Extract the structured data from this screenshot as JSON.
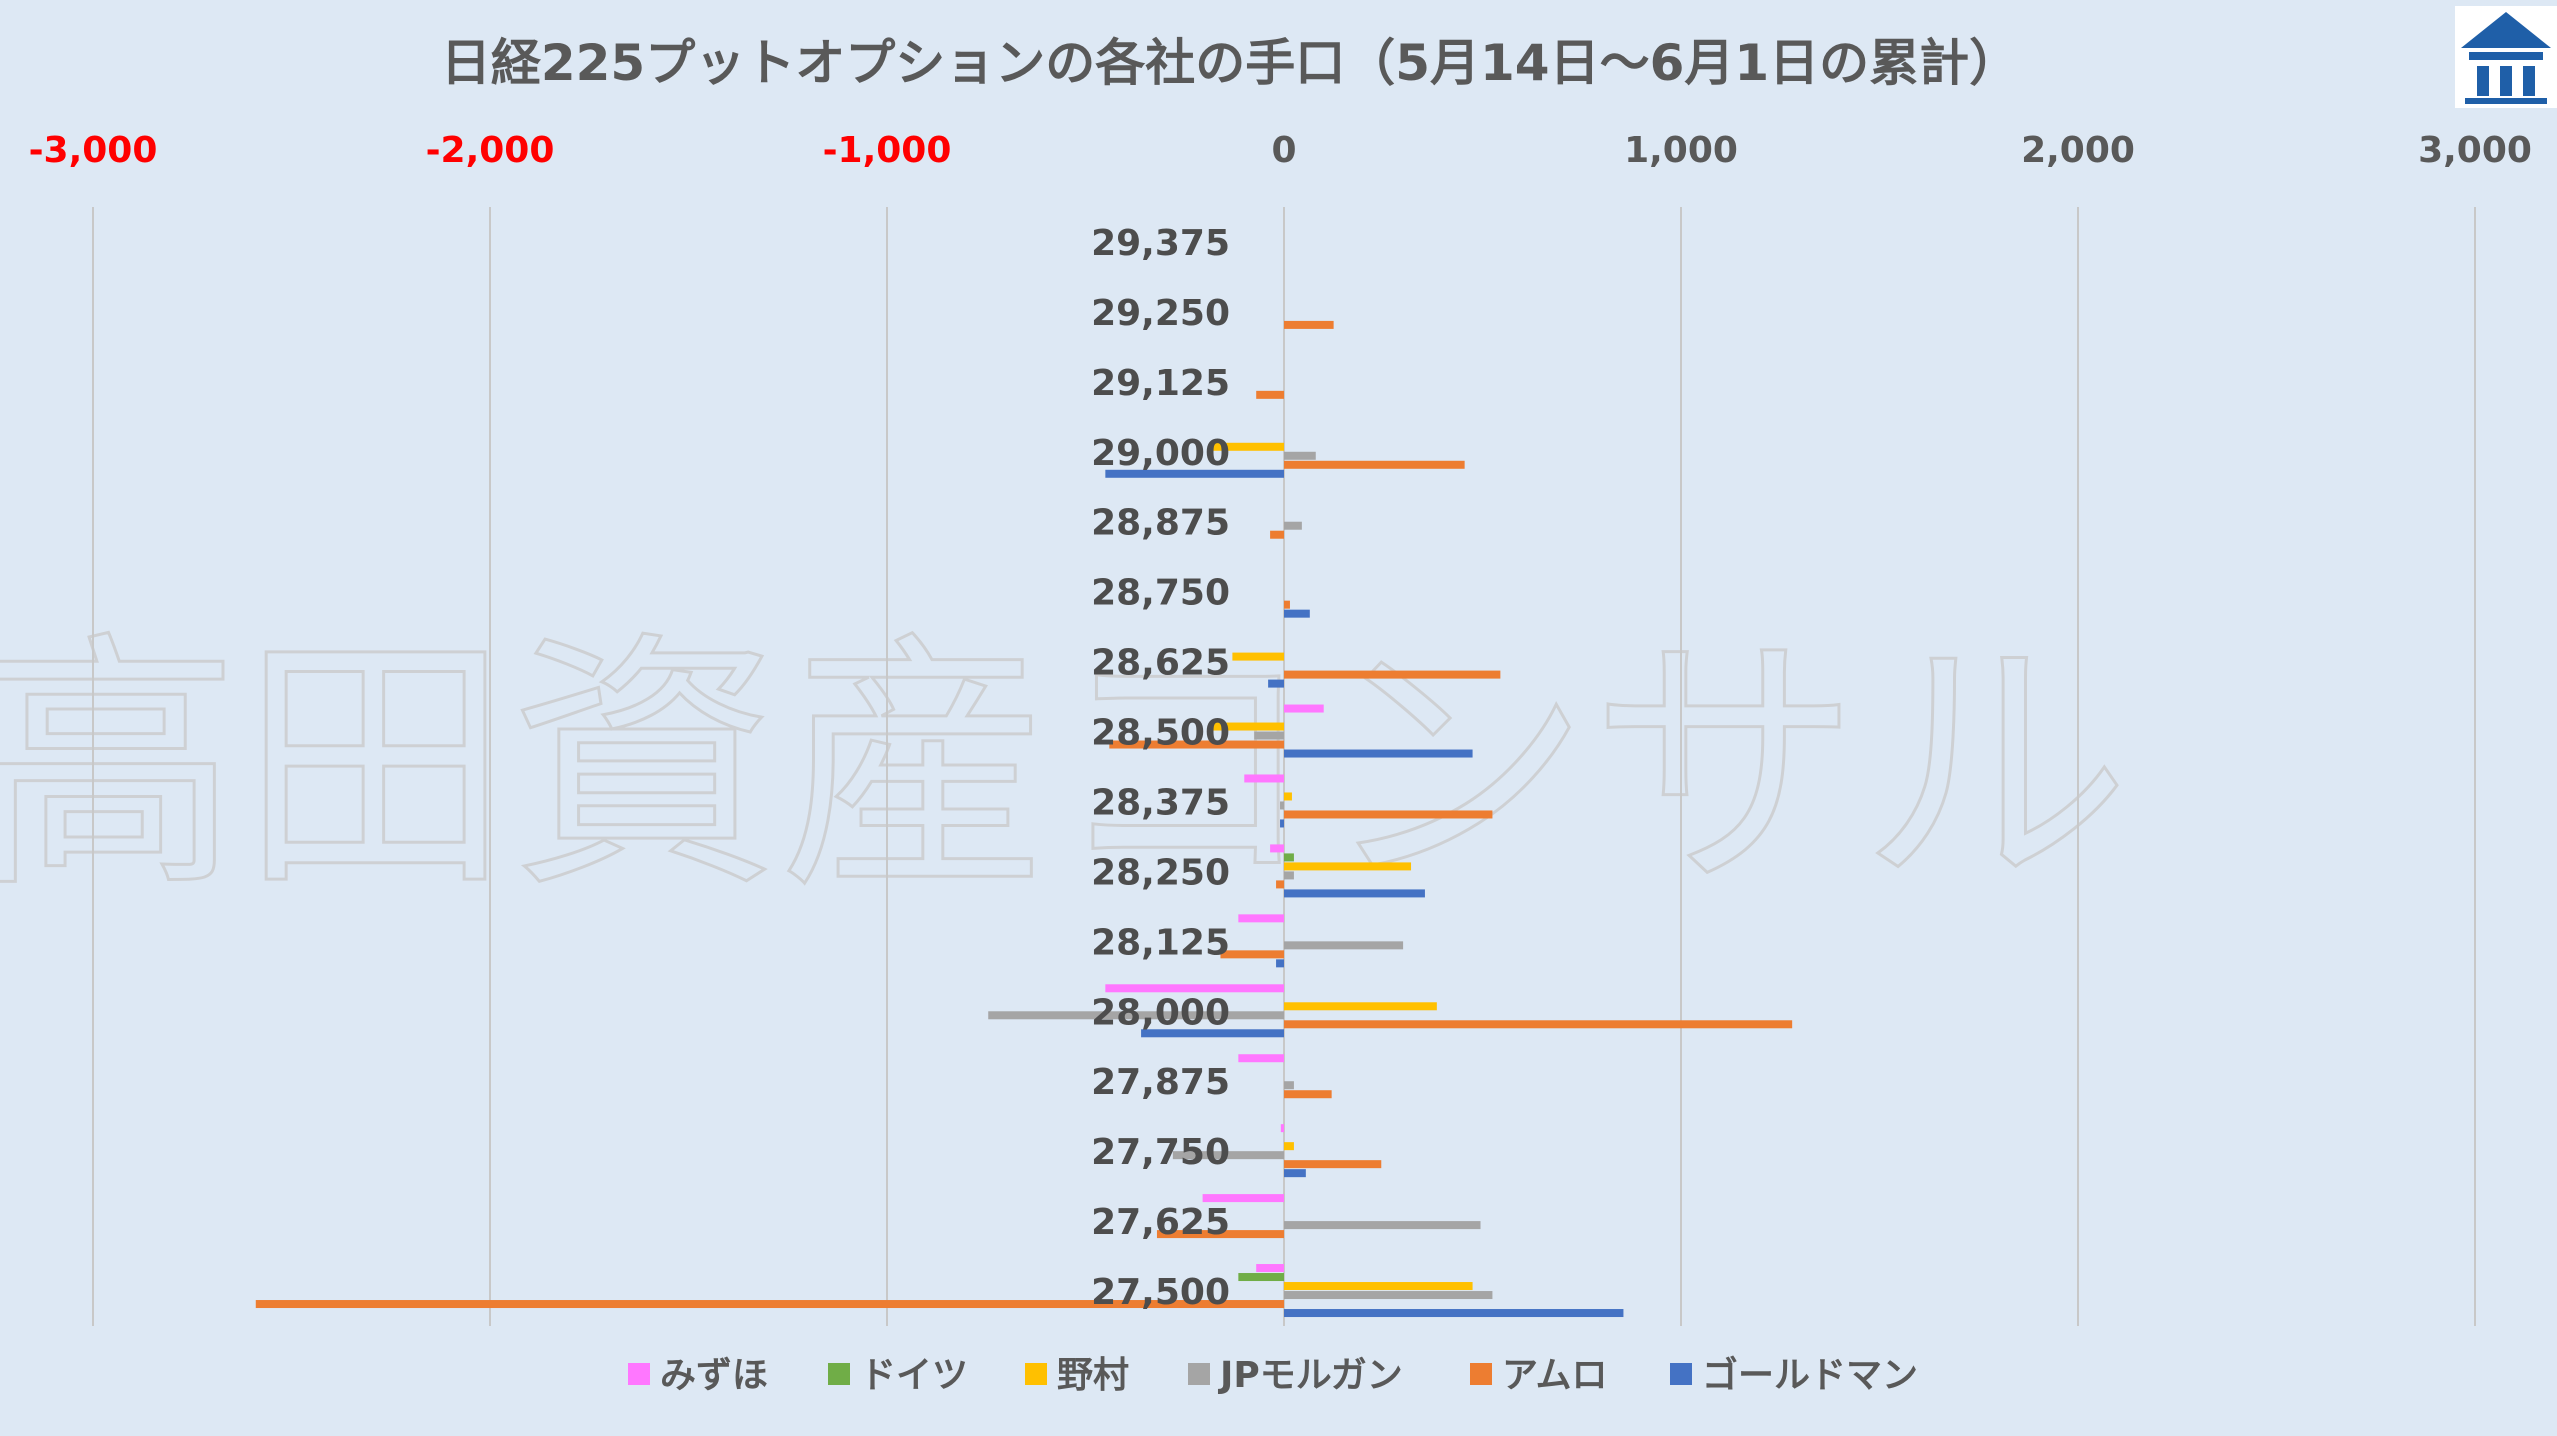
{
  "chart_data": {
    "type": "bar",
    "orientation": "horizontal",
    "title": "日経225プットオプションの各社の手口（5月14日～6月1日の累計）",
    "watermark": "高田資産コンサル",
    "xlim": [
      -3000,
      3000
    ],
    "x_ticks": [
      -3000,
      -2000,
      -1000,
      0,
      1000,
      2000,
      3000
    ],
    "x_tick_labels": [
      "-3,000",
      "-2,000",
      "-1,000",
      "0",
      "1,000",
      "2,000",
      "3,000"
    ],
    "x_tick_colors": [
      "#ff0000",
      "#ff0000",
      "#ff0000",
      "#595959",
      "#595959",
      "#595959",
      "#595959"
    ],
    "x_axis_position": "top",
    "grid": "vertical",
    "legend_position": "bottom",
    "categories": [
      "29,375",
      "29,250",
      "29,125",
      "29,000",
      "28,875",
      "28,750",
      "28,625",
      "28,500",
      "28,375",
      "28,250",
      "28,125",
      "28,000",
      "27,875",
      "27,750",
      "27,625",
      "27,500"
    ],
    "series": [
      {
        "name": "みずほ",
        "color": "#ff77ff",
        "values": [
          0,
          0,
          0,
          0,
          0,
          0,
          0,
          100,
          -100,
          -35,
          -115,
          -450,
          -115,
          -8,
          -205,
          -70
        ]
      },
      {
        "name": "ドイツ",
        "color": "#70ad47",
        "values": [
          0,
          0,
          0,
          0,
          0,
          0,
          0,
          0,
          0,
          25,
          0,
          0,
          0,
          0,
          0,
          -115
        ]
      },
      {
        "name": "野村",
        "color": "#ffc000",
        "values": [
          0,
          0,
          0,
          -180,
          0,
          0,
          -130,
          -180,
          20,
          320,
          0,
          385,
          0,
          25,
          0,
          475
        ]
      },
      {
        "name": "JPモルガン",
        "color": "#a5a5a5",
        "values": [
          0,
          0,
          0,
          80,
          45,
          0,
          0,
          -75,
          -10,
          25,
          300,
          -745,
          25,
          -280,
          495,
          525
        ]
      },
      {
        "name": "アムロ",
        "color": "#ed7d31",
        "values": [
          0,
          125,
          -70,
          455,
          -35,
          15,
          545,
          -440,
          525,
          -20,
          -160,
          1280,
          120,
          245,
          -320,
          -2590
        ]
      },
      {
        "name": "ゴールドマン",
        "color": "#4472c4",
        "values": [
          0,
          0,
          0,
          -450,
          0,
          65,
          -40,
          475,
          -10,
          355,
          -20,
          -360,
          0,
          55,
          0,
          855
        ]
      }
    ]
  },
  "logo_icon": "building-pillars-icon"
}
